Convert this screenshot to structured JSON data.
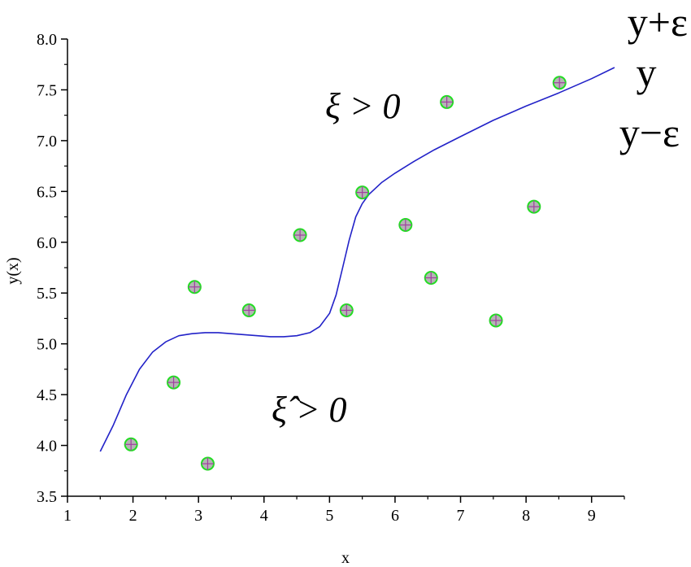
{
  "chart_data": {
    "type": "scatter",
    "title": "",
    "xlabel": "x",
    "ylabel": "y(x)",
    "xlim": [
      1,
      9.5
    ],
    "ylim": [
      3.5,
      8.0
    ],
    "x_ticks": [
      "1",
      "2",
      "3",
      "4",
      "5",
      "6",
      "7",
      "8",
      "9"
    ],
    "y_ticks": [
      "3.5",
      "4.0",
      "4.5",
      "5.0",
      "5.5",
      "6.0",
      "6.5",
      "7.0",
      "7.5",
      "8.0"
    ],
    "grid": false,
    "points": [
      {
        "x": 1.97,
        "y": 4.01
      },
      {
        "x": 2.62,
        "y": 4.62
      },
      {
        "x": 2.94,
        "y": 5.56
      },
      {
        "x": 3.14,
        "y": 3.82
      },
      {
        "x": 3.77,
        "y": 5.33
      },
      {
        "x": 4.55,
        "y": 6.07
      },
      {
        "x": 5.26,
        "y": 5.33
      },
      {
        "x": 5.5,
        "y": 6.49
      },
      {
        "x": 6.16,
        "y": 6.17
      },
      {
        "x": 6.55,
        "y": 5.65
      },
      {
        "x": 6.79,
        "y": 7.38
      },
      {
        "x": 7.54,
        "y": 5.23
      },
      {
        "x": 8.12,
        "y": 6.35
      },
      {
        "x": 8.51,
        "y": 7.57
      }
    ],
    "curve": {
      "x": [
        1.5,
        1.7,
        1.9,
        2.1,
        2.3,
        2.5,
        2.7,
        2.9,
        3.1,
        3.3,
        3.5,
        3.7,
        3.9,
        4.1,
        4.3,
        4.5,
        4.7,
        4.85,
        5.0,
        5.1,
        5.2,
        5.3,
        5.4,
        5.5,
        5.6,
        5.8,
        6.0,
        6.3,
        6.6,
        7.0,
        7.5,
        8.0,
        8.5,
        9.0,
        9.35
      ],
      "y": [
        3.94,
        4.2,
        4.5,
        4.75,
        4.92,
        5.02,
        5.08,
        5.1,
        5.11,
        5.11,
        5.1,
        5.09,
        5.08,
        5.07,
        5.07,
        5.08,
        5.11,
        5.17,
        5.3,
        5.48,
        5.75,
        6.02,
        6.25,
        6.38,
        6.47,
        6.59,
        6.68,
        6.8,
        6.91,
        7.04,
        7.2,
        7.34,
        7.47,
        7.61,
        7.72
      ]
    },
    "colors": {
      "curve": "#2222c8",
      "marker_fill": "#b4b4b4",
      "marker_edge": "#22dd22",
      "marker_cross": "#a040a0"
    },
    "labels": {
      "upper_band": "y+ε",
      "center": "y",
      "lower_band": "y−ε",
      "xi_pos": "ξ > 0",
      "xi_hat_pos": "ξ̂ > 0"
    }
  }
}
